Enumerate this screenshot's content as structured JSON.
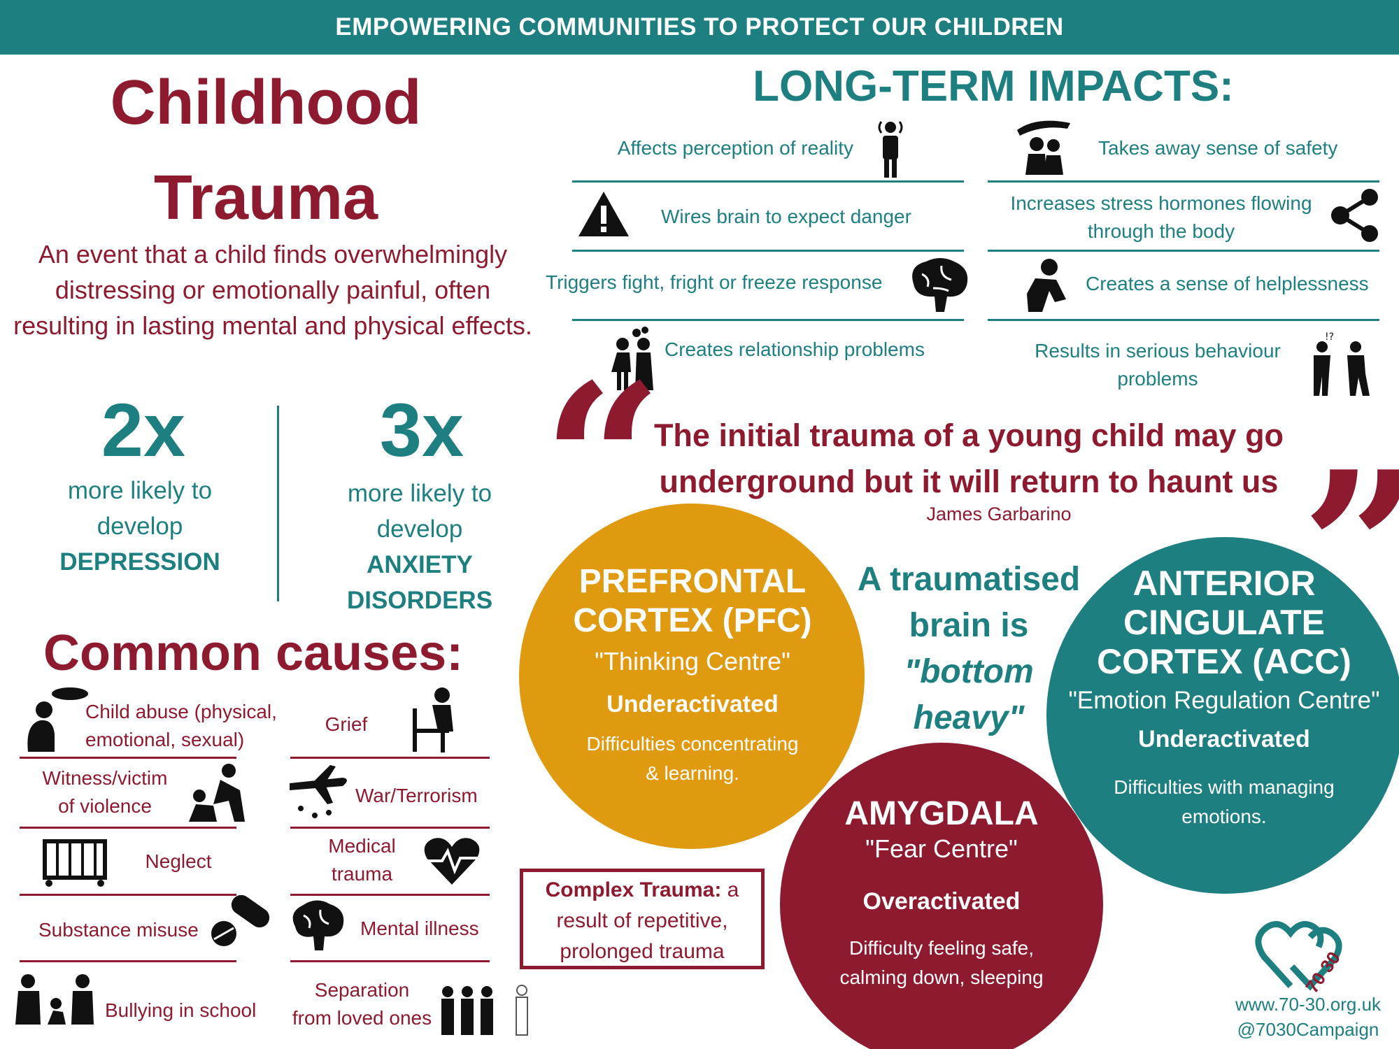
{
  "banner": {
    "text": "EMPOWERING COMMUNITIES TO PROTECT OUR CHILDREN"
  },
  "title": {
    "line1": "Childhood",
    "line2": "Trauma"
  },
  "definition": {
    "line1": "An event that a child finds overwhelmingly",
    "line2": "distressing or emotionally painful, often",
    "line3": "resulting in lasting mental and physical effects."
  },
  "stats": [
    {
      "value": "2x",
      "line1": "more likely to",
      "line2": "develop",
      "line3": "DEPRESSION",
      "line4": ""
    },
    {
      "value": "3x",
      "line1": "more likely to",
      "line2": "develop",
      "line3": "ANXIETY",
      "line4": "DISORDERS"
    }
  ],
  "causes": {
    "title": "Common causes:",
    "items": {
      "abuse_1": "Child abuse (physical,",
      "abuse_2": "emotional, sexual)",
      "grief": "Grief",
      "violence_1": "Witness/victim",
      "violence_2": "of violence",
      "war": "War/Terrorism",
      "neglect": "Neglect",
      "medical_1": "Medical",
      "medical_2": "trauma",
      "substance": "Substance misuse",
      "mental": "Mental illness",
      "bullying": "Bullying in school",
      "separation_1": "Separation",
      "separation_2": "from loved ones"
    }
  },
  "impacts": {
    "title": "LONG-TERM IMPACTS:",
    "perception": "Affects perception of reality",
    "safety": "Takes away sense of safety",
    "danger": "Wires brain to expect danger",
    "stress_1": "Increases stress hormones flowing",
    "stress_2": "through the body",
    "fight": "Triggers fight, fright or freeze response",
    "helpless": "Creates a sense of helplessness",
    "relationship": "Creates relationship problems",
    "behaviour_1": "Results in serious behaviour",
    "behaviour_2": "problems"
  },
  "quote": {
    "line1": "The initial trauma of a young child may go",
    "line2": "underground but it will return to haunt us",
    "author": "James Garbarino",
    "open_mark": "“",
    "close_mark": "”"
  },
  "brain": {
    "pfc": {
      "head1": "PREFRONTAL",
      "head2": "CORTEX (PFC)",
      "nickname": "\"Thinking Centre\"",
      "state": "Underactivated",
      "desc1": "Difficulties concentrating",
      "desc2": "& learning.",
      "color": "#e09a0f"
    },
    "acc": {
      "head1": "ANTERIOR",
      "head2": "CINGULATE",
      "head3": "CORTEX (ACC)",
      "nickname": "\"Emotion Regulation Centre\"",
      "state": "Underactivated",
      "desc1": "Difficulties with managing",
      "desc2": "emotions.",
      "color": "#1e7f80"
    },
    "amygdala": {
      "head1": "AMYGDALA",
      "nickname": "\"Fear Centre\"",
      "state": "Overactivated",
      "desc1": "Difficulty feeling safe,",
      "desc2": "calming down, sleeping",
      "color": "#8e1a30"
    },
    "middle": {
      "line1": "A traumatised",
      "line2": "brain is",
      "line3": "\"bottom",
      "line4": "heavy\""
    }
  },
  "complex": {
    "label": "Complex Trauma:",
    "rest1": " a",
    "line2": "result of repetitive,",
    "line3": "prolonged trauma"
  },
  "footer": {
    "logo_number": "70 30",
    "website": "www.70-30.org.uk",
    "handle": "@7030Campaign"
  },
  "colors": {
    "teal": "#1e7f80",
    "maroon": "#8e1a30",
    "gold": "#e09a0f"
  }
}
